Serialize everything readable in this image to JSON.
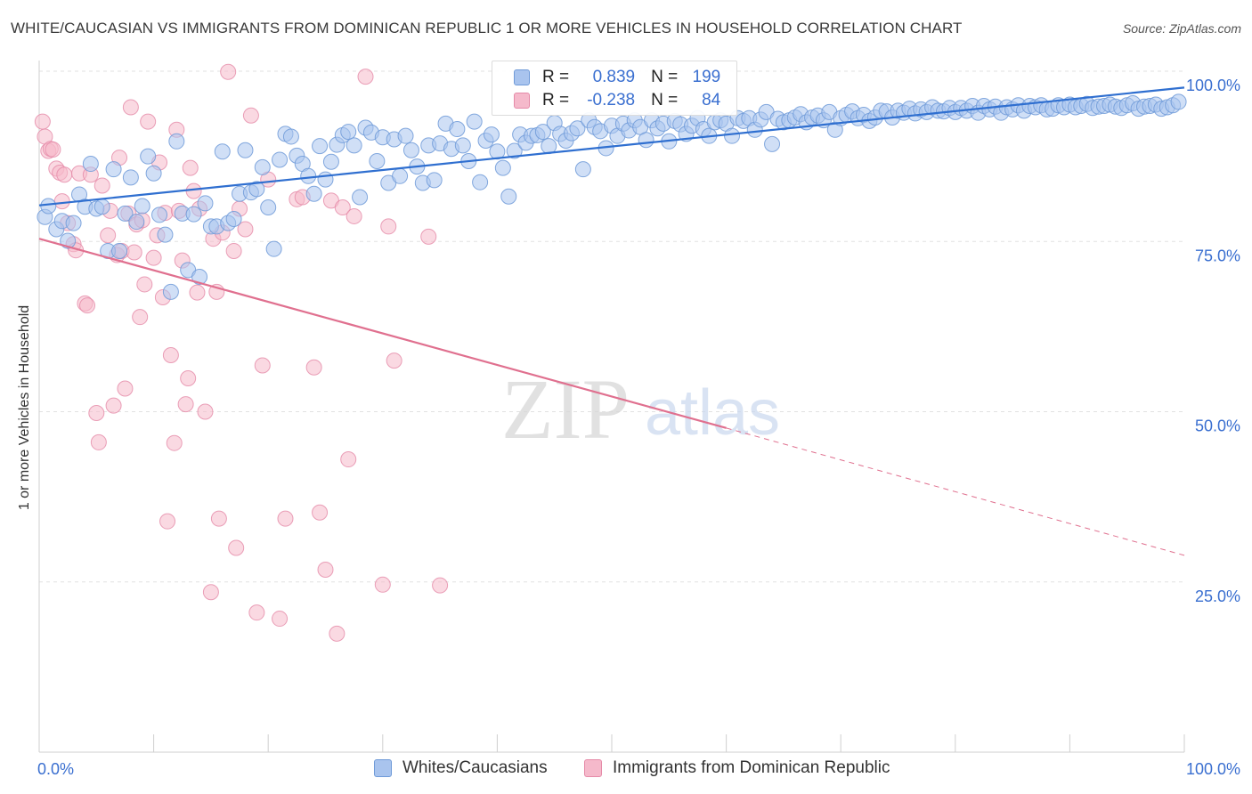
{
  "header": {
    "title": "WHITE/CAUCASIAN VS IMMIGRANTS FROM DOMINICAN REPUBLIC 1 OR MORE VEHICLES IN HOUSEHOLD CORRELATION CHART",
    "source": "Source: ZipAtlas.com"
  },
  "watermark": {
    "zip": "ZIP",
    "atlas": "atlas"
  },
  "legend": {
    "rows": [
      {
        "r_label": "R =",
        "r_value": "0.839",
        "n_label": "N =",
        "n_value": "199"
      },
      {
        "r_label": "R =",
        "r_value": "-0.238",
        "n_label": "N =",
        "n_value": "84"
      }
    ]
  },
  "bottom_legend": {
    "items": [
      {
        "label": "Whites/Caucasians"
      },
      {
        "label": "Immigrants from Dominican Republic"
      }
    ]
  },
  "colors": {
    "blue_fill": "#a9c4ee",
    "blue_stroke": "#6f9ad8",
    "blue_line": "#2f6fd0",
    "pink_fill": "#f5b9cb",
    "pink_stroke": "#e58aa8",
    "pink_line": "#e0708f",
    "axis_text": "#3a6fd0",
    "grid": "#e2e2e2"
  },
  "chart_data": {
    "type": "scatter",
    "title": "WHITE/CAUCASIAN VS IMMIGRANTS FROM DOMINICAN REPUBLIC 1 OR MORE VEHICLES IN HOUSEHOLD CORRELATION CHART",
    "xlabel": "",
    "ylabel": "1 or more Vehicles in Household",
    "xlim": [
      0,
      100
    ],
    "ylim": [
      0,
      100
    ],
    "x_tick_labels": [
      "0.0%",
      "100.0%"
    ],
    "y_tick_labels": [
      "25.0%",
      "50.0%",
      "75.0%",
      "100.0%"
    ],
    "y_tick_values": [
      25,
      50,
      75,
      100
    ],
    "grid": "horizontal dashed",
    "legend_placement": "top-center",
    "series": [
      {
        "name": "Whites/Caucasians",
        "R": 0.839,
        "N": 199,
        "trend": {
          "x": [
            0,
            100
          ],
          "y": [
            80.3,
            97.6
          ]
        },
        "points": [
          [
            0.5,
            78.6
          ],
          [
            0.8,
            80.2
          ],
          [
            1.5,
            76.8
          ],
          [
            2,
            78
          ],
          [
            2.5,
            75.1
          ],
          [
            3,
            77.7
          ],
          [
            3.5,
            81.9
          ],
          [
            4,
            80.1
          ],
          [
            4.5,
            86.4
          ],
          [
            5,
            79.8
          ],
          [
            5.5,
            80.1
          ],
          [
            6,
            73.6
          ],
          [
            6.5,
            85.6
          ],
          [
            7,
            73.6
          ],
          [
            7.5,
            79.1
          ],
          [
            8,
            84.4
          ],
          [
            8.5,
            77.9
          ],
          [
            9,
            80.2
          ],
          [
            9.5,
            87.5
          ],
          [
            10,
            85
          ],
          [
            10.5,
            78.9
          ],
          [
            11,
            76
          ],
          [
            11.5,
            67.6
          ],
          [
            12,
            89.7
          ],
          [
            12.5,
            79.1
          ],
          [
            13,
            70.8
          ],
          [
            13.5,
            79
          ],
          [
            14,
            69.8
          ],
          [
            14.5,
            80.6
          ],
          [
            15,
            77.2
          ],
          [
            15.5,
            77.2
          ],
          [
            16,
            88.2
          ],
          [
            16.5,
            77.7
          ],
          [
            17,
            78.3
          ],
          [
            17.5,
            82
          ],
          [
            18,
            88.4
          ],
          [
            18.5,
            82.2
          ],
          [
            19,
            82.7
          ],
          [
            19.5,
            85.9
          ],
          [
            20,
            80
          ],
          [
            20.5,
            73.9
          ],
          [
            21,
            87
          ],
          [
            21.5,
            90.8
          ],
          [
            22,
            90.4
          ],
          [
            22.5,
            87.6
          ],
          [
            23,
            86.4
          ],
          [
            23.5,
            84.6
          ],
          [
            24,
            82
          ],
          [
            24.5,
            89
          ],
          [
            25,
            84.1
          ],
          [
            25.5,
            86.7
          ],
          [
            26,
            89.2
          ],
          [
            26.5,
            90.6
          ],
          [
            27,
            91.1
          ],
          [
            27.5,
            89.1
          ],
          [
            28,
            81.5
          ],
          [
            28.5,
            91.7
          ],
          [
            29,
            91
          ],
          [
            29.5,
            86.8
          ],
          [
            30,
            90.3
          ],
          [
            30.5,
            83.6
          ],
          [
            31,
            90
          ],
          [
            31.5,
            84.6
          ],
          [
            32,
            90.5
          ],
          [
            32.5,
            88.4
          ],
          [
            33,
            86
          ],
          [
            33.5,
            83.6
          ],
          [
            34,
            89.1
          ],
          [
            34.5,
            84
          ],
          [
            35,
            89.4
          ],
          [
            35.5,
            92.3
          ],
          [
            36,
            88.6
          ],
          [
            36.5,
            91.5
          ],
          [
            37,
            89.1
          ],
          [
            37.5,
            86.8
          ],
          [
            38,
            92.6
          ],
          [
            38.5,
            83.7
          ],
          [
            39,
            89.8
          ],
          [
            39.5,
            90.7
          ],
          [
            40,
            88.2
          ],
          [
            40.5,
            85.8
          ],
          [
            41,
            81.6
          ],
          [
            41.5,
            88.3
          ],
          [
            42,
            90.7
          ],
          [
            42.5,
            89.5
          ],
          [
            43,
            90.5
          ],
          [
            43.5,
            90.6
          ],
          [
            44,
            91.1
          ],
          [
            44.5,
            89
          ],
          [
            45,
            92.4
          ],
          [
            45.5,
            90.8
          ],
          [
            46,
            89.8
          ],
          [
            46.5,
            90.9
          ],
          [
            47,
            91.6
          ],
          [
            47.5,
            85.6
          ],
          [
            48,
            92.8
          ],
          [
            48.5,
            91.8
          ],
          [
            49,
            91.2
          ],
          [
            49.5,
            88.7
          ],
          [
            50,
            92
          ],
          [
            50.5,
            90.5
          ],
          [
            51,
            92.3
          ],
          [
            51.5,
            91.3
          ],
          [
            52,
            92.8
          ],
          [
            52.5,
            91.8
          ],
          [
            53,
            89.9
          ],
          [
            53.5,
            92.8
          ],
          [
            54,
            91.6
          ],
          [
            54.5,
            92.3
          ],
          [
            55,
            89.7
          ],
          [
            55.5,
            92.7
          ],
          [
            56,
            92.2
          ],
          [
            56.5,
            90.8
          ],
          [
            57,
            92
          ],
          [
            57.5,
            93.1
          ],
          [
            58,
            91.5
          ],
          [
            58.5,
            90.5
          ],
          [
            59,
            92.5
          ],
          [
            59.5,
            92.8
          ],
          [
            60,
            92.3
          ],
          [
            60.5,
            90.5
          ],
          [
            61,
            93.1
          ],
          [
            61.5,
            92.7
          ],
          [
            62,
            93.1
          ],
          [
            62.5,
            91.4
          ],
          [
            63,
            92.9
          ],
          [
            63.5,
            94
          ],
          [
            64,
            89.3
          ],
          [
            64.5,
            93
          ],
          [
            65,
            92.5
          ],
          [
            65.5,
            92.8
          ],
          [
            66,
            93.2
          ],
          [
            66.5,
            93.7
          ],
          [
            67,
            92.5
          ],
          [
            67.5,
            93.2
          ],
          [
            68,
            93.5
          ],
          [
            68.5,
            92.8
          ],
          [
            69,
            94
          ],
          [
            69.5,
            91.4
          ],
          [
            70,
            93.1
          ],
          [
            70.5,
            93.6
          ],
          [
            71,
            94.1
          ],
          [
            71.5,
            93.1
          ],
          [
            72,
            93.6
          ],
          [
            72.5,
            92.7
          ],
          [
            73,
            93.2
          ],
          [
            73.5,
            94.2
          ],
          [
            74,
            94.1
          ],
          [
            74.5,
            93.2
          ],
          [
            75,
            94.2
          ],
          [
            75.5,
            93.9
          ],
          [
            76,
            94.5
          ],
          [
            76.5,
            93.8
          ],
          [
            77,
            94.4
          ],
          [
            77.5,
            94
          ],
          [
            78,
            94.7
          ],
          [
            78.5,
            94.2
          ],
          [
            79,
            94.1
          ],
          [
            79.5,
            94.6
          ],
          [
            80,
            94
          ],
          [
            80.5,
            94.6
          ],
          [
            81,
            94.2
          ],
          [
            81.5,
            94.9
          ],
          [
            82,
            93.9
          ],
          [
            82.5,
            94.9
          ],
          [
            83,
            94.4
          ],
          [
            83.5,
            94.8
          ],
          [
            84,
            93.9
          ],
          [
            84.5,
            94.7
          ],
          [
            85,
            94.4
          ],
          [
            85.5,
            95
          ],
          [
            86,
            94.2
          ],
          [
            86.5,
            94.9
          ],
          [
            87,
            94.7
          ],
          [
            87.5,
            95
          ],
          [
            88,
            94.4
          ],
          [
            88.5,
            94.5
          ],
          [
            89,
            95
          ],
          [
            89.5,
            94.7
          ],
          [
            90,
            95.1
          ],
          [
            90.5,
            94.7
          ],
          [
            91,
            94.9
          ],
          [
            91.5,
            95.2
          ],
          [
            92,
            94.6
          ],
          [
            92.5,
            94.8
          ],
          [
            93,
            94.9
          ],
          [
            93.5,
            95.1
          ],
          [
            94,
            94.8
          ],
          [
            94.5,
            94.6
          ],
          [
            95,
            95
          ],
          [
            95.5,
            95.3
          ],
          [
            96,
            94.5
          ],
          [
            96.5,
            94.8
          ],
          [
            97,
            94.9
          ],
          [
            97.5,
            95.1
          ],
          [
            98,
            94.5
          ],
          [
            98.5,
            94.7
          ],
          [
            99,
            95
          ],
          [
            99.5,
            95.5
          ]
        ]
      },
      {
        "name": "Immigrants from Dominican Republic",
        "R": -0.238,
        "N": 84,
        "trend": {
          "x": [
            0,
            60
          ],
          "y": [
            75.4,
            47.6
          ]
        },
        "trend_extension": {
          "x": [
            60,
            100
          ],
          "y": [
            47.6,
            28.9
          ]
        },
        "points": [
          [
            0.3,
            92.6
          ],
          [
            0.5,
            90.4
          ],
          [
            0.8,
            88.3
          ],
          [
            1,
            88.6
          ],
          [
            1.2,
            88.5
          ],
          [
            1.5,
            85.7
          ],
          [
            1.8,
            85.1
          ],
          [
            2,
            80.9
          ],
          [
            2.2,
            84.8
          ],
          [
            2.5,
            77.7
          ],
          [
            3,
            74.6
          ],
          [
            3.2,
            73.7
          ],
          [
            3.5,
            85
          ],
          [
            4,
            65.9
          ],
          [
            4.2,
            65.6
          ],
          [
            4.5,
            84.8
          ],
          [
            5,
            49.8
          ],
          [
            5.2,
            45.5
          ],
          [
            5.5,
            83.2
          ],
          [
            6,
            75.9
          ],
          [
            6.2,
            79.5
          ],
          [
            6.5,
            50.9
          ],
          [
            6.8,
            73
          ],
          [
            7,
            87.3
          ],
          [
            7.2,
            73.6
          ],
          [
            7.5,
            53.4
          ],
          [
            7.8,
            79.1
          ],
          [
            8,
            94.7
          ],
          [
            8.3,
            73.4
          ],
          [
            8.5,
            77.5
          ],
          [
            8.8,
            63.9
          ],
          [
            9,
            78.1
          ],
          [
            9.2,
            68.7
          ],
          [
            9.5,
            92.6
          ],
          [
            10,
            72.6
          ],
          [
            10.3,
            75.9
          ],
          [
            10.5,
            86.6
          ],
          [
            10.8,
            66.8
          ],
          [
            11,
            79.2
          ],
          [
            11.2,
            33.9
          ],
          [
            11.5,
            58.3
          ],
          [
            11.8,
            45.4
          ],
          [
            12,
            91.4
          ],
          [
            12.2,
            79.5
          ],
          [
            12.5,
            72.2
          ],
          [
            12.8,
            51.1
          ],
          [
            13,
            54.9
          ],
          [
            13.2,
            85.8
          ],
          [
            13.5,
            82.4
          ],
          [
            13.8,
            67.5
          ],
          [
            14,
            79.8
          ],
          [
            14.5,
            50
          ],
          [
            15,
            23.5
          ],
          [
            15.2,
            75.4
          ],
          [
            15.5,
            67.6
          ],
          [
            15.7,
            34.3
          ],
          [
            16,
            76.3
          ],
          [
            16.5,
            99.9
          ],
          [
            17,
            73.6
          ],
          [
            17.2,
            30
          ],
          [
            17.5,
            79.8
          ],
          [
            18,
            76.8
          ],
          [
            18.5,
            93.5
          ],
          [
            19,
            20.5
          ],
          [
            19.5,
            56.8
          ],
          [
            20,
            84.1
          ],
          [
            21,
            19.6
          ],
          [
            21.5,
            34.3
          ],
          [
            22.5,
            81.2
          ],
          [
            23,
            81.5
          ],
          [
            24,
            56.5
          ],
          [
            24.5,
            35.2
          ],
          [
            25,
            26.8
          ],
          [
            25.5,
            81
          ],
          [
            26,
            17.4
          ],
          [
            26.5,
            80
          ],
          [
            27,
            43
          ],
          [
            27.5,
            78.7
          ],
          [
            28.5,
            99.2
          ],
          [
            30,
            24.6
          ],
          [
            30.5,
            77.2
          ],
          [
            31,
            57.5
          ],
          [
            34,
            75.7
          ],
          [
            35,
            24.5
          ]
        ]
      }
    ]
  }
}
